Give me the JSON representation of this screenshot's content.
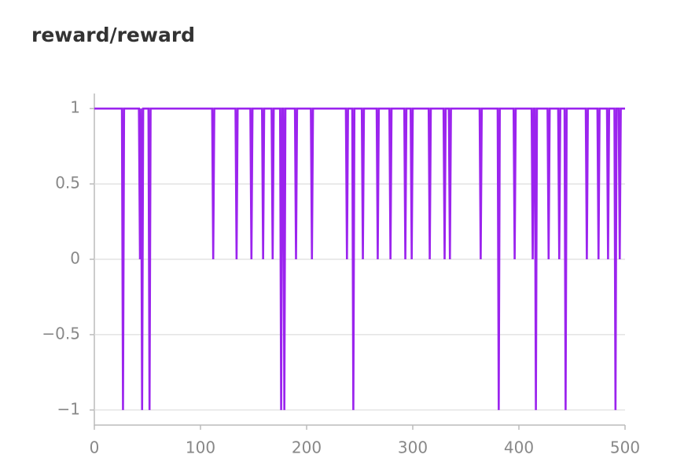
{
  "chart_data": {
    "type": "line",
    "title": "reward/reward",
    "x": [
      0,
      26,
      27,
      28,
      42,
      43,
      44,
      45,
      46,
      51,
      52,
      53,
      111,
      112,
      113,
      133,
      134,
      135,
      147,
      148,
      149,
      158,
      159,
      160,
      167,
      168,
      169,
      175,
      176,
      177,
      178,
      179,
      180,
      189,
      190,
      191,
      204,
      205,
      206,
      237,
      238,
      239,
      243,
      244,
      245,
      252,
      253,
      254,
      266,
      267,
      268,
      278,
      279,
      280,
      292,
      293,
      294,
      298,
      299,
      300,
      315,
      316,
      317,
      329,
      330,
      331,
      334,
      335,
      336,
      363,
      364,
      365,
      380,
      381,
      382,
      395,
      396,
      397,
      412,
      413,
      414,
      415,
      416,
      417,
      427,
      428,
      429,
      437,
      438,
      439,
      443,
      444,
      445,
      463,
      464,
      465,
      474,
      475,
      476,
      483,
      484,
      485,
      490,
      491,
      492,
      494,
      495,
      496,
      500
    ],
    "values": [
      1,
      1,
      -1,
      1,
      1,
      0,
      1,
      -1,
      1,
      1,
      -1,
      1,
      1,
      0,
      1,
      1,
      0,
      1,
      1,
      0,
      1,
      1,
      0,
      1,
      1,
      0,
      1,
      1,
      -1,
      1,
      1,
      -1,
      1,
      1,
      0,
      1,
      1,
      0,
      1,
      1,
      0,
      1,
      1,
      -1,
      1,
      1,
      0,
      1,
      1,
      0,
      1,
      1,
      0,
      1,
      1,
      0,
      1,
      1,
      0,
      1,
      1,
      0,
      1,
      1,
      0,
      1,
      1,
      0,
      1,
      1,
      0,
      1,
      1,
      -1,
      1,
      1,
      0,
      1,
      1,
      0,
      1,
      1,
      -1,
      1,
      1,
      0,
      1,
      1,
      0,
      1,
      1,
      -1,
      1,
      1,
      0,
      1,
      1,
      0,
      1,
      1,
      0,
      1,
      1,
      -1,
      1,
      1,
      0,
      1,
      1
    ],
    "color": "#9b24ee",
    "xlim": [
      0,
      500
    ],
    "xticks": [
      0,
      100,
      200,
      300,
      400,
      500
    ],
    "ylim": [
      -1.1,
      1.1
    ],
    "yticks": [
      {
        "value": -1,
        "label": "−1"
      },
      {
        "value": -0.5,
        "label": "−0.5"
      },
      0,
      0.5,
      1
    ],
    "grid": true
  }
}
